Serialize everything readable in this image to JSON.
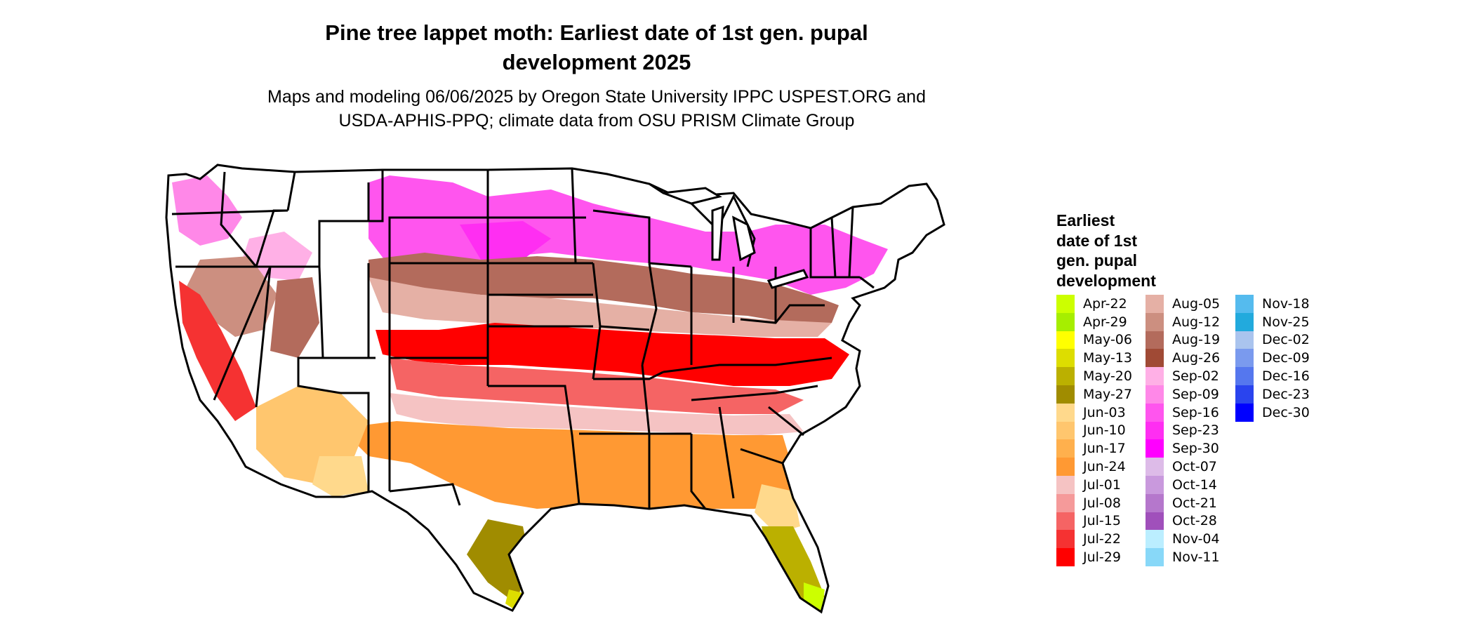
{
  "title_line1": "Pine tree lappet moth: Earliest date of 1st gen. pupal",
  "title_line2": "development 2025",
  "subtitle_line1": "Maps and modeling 06/06/2025 by Oregon State University IPPC USPEST.ORG and",
  "subtitle_line2": "USDA-APHIS-PPQ; climate data from OSU PRISM Climate Group",
  "legend": {
    "title_lines": [
      "Earliest",
      "date of 1st",
      "gen. pupal",
      "development"
    ],
    "columns": [
      [
        {
          "label": "Apr-22",
          "color": "#ccff00"
        },
        {
          "label": "Apr-29",
          "color": "#a6ee00"
        },
        {
          "label": "May-06",
          "color": "#ffff00"
        },
        {
          "label": "May-13",
          "color": "#dddd00"
        },
        {
          "label": "May-20",
          "color": "#bbb000"
        },
        {
          "label": "May-27",
          "color": "#a08c00"
        },
        {
          "label": "Jun-03",
          "color": "#ffd98c"
        },
        {
          "label": "Jun-10",
          "color": "#ffc66e"
        },
        {
          "label": "Jun-17",
          "color": "#ffb04d"
        },
        {
          "label": "Jun-24",
          "color": "#ff9933"
        },
        {
          "label": "Jul-01",
          "color": "#f5c3c3"
        },
        {
          "label": "Jul-08",
          "color": "#f59a9a"
        },
        {
          "label": "Jul-15",
          "color": "#f56464"
        },
        {
          "label": "Jul-22",
          "color": "#f53232"
        },
        {
          "label": "Jul-29",
          "color": "#ff0000"
        }
      ],
      [
        {
          "label": "Aug-05",
          "color": "#e5b0a5"
        },
        {
          "label": "Aug-12",
          "color": "#cc8f80"
        },
        {
          "label": "Aug-19",
          "color": "#b36b5c"
        },
        {
          "label": "Aug-26",
          "color": "#a04a35"
        },
        {
          "label": "Sep-02",
          "color": "#ffb0e6"
        },
        {
          "label": "Sep-09",
          "color": "#ff88e8"
        },
        {
          "label": "Sep-16",
          "color": "#ff55ee"
        },
        {
          "label": "Sep-23",
          "color": "#ff2ef2"
        },
        {
          "label": "Sep-30",
          "color": "#ff00ff"
        },
        {
          "label": "Oct-07",
          "color": "#ddbbe8"
        },
        {
          "label": "Oct-14",
          "color": "#c999dd"
        },
        {
          "label": "Oct-21",
          "color": "#b577cc"
        },
        {
          "label": "Oct-28",
          "color": "#a050bb"
        },
        {
          "label": "Nov-04",
          "color": "#bbeeff"
        },
        {
          "label": "Nov-11",
          "color": "#88d8f8"
        }
      ],
      [
        {
          "label": "Nov-18",
          "color": "#55bbee"
        },
        {
          "label": "Nov-25",
          "color": "#22aadd"
        },
        {
          "label": "Dec-02",
          "color": "#aac4ee"
        },
        {
          "label": "Dec-09",
          "color": "#7a9aee"
        },
        {
          "label": "Dec-16",
          "color": "#5577ee"
        },
        {
          "label": "Dec-23",
          "color": "#2a44ee"
        },
        {
          "label": "Dec-30",
          "color": "#0000ff"
        }
      ]
    ]
  }
}
